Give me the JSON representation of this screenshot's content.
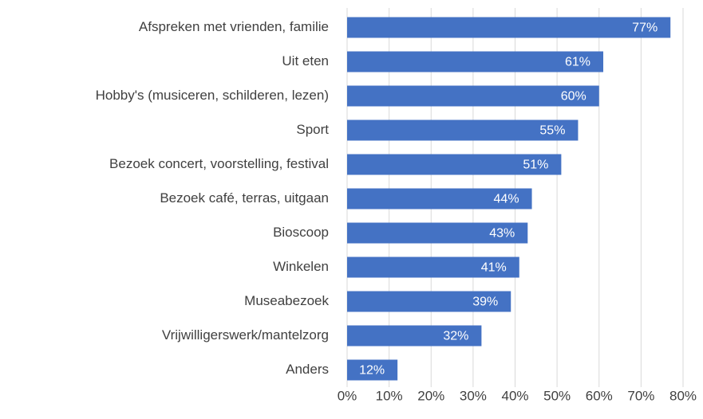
{
  "chart_data": {
    "type": "hbar",
    "categories": [
      "Afspreken met vrienden, familie",
      "Uit eten",
      "Hobby's (musiceren, schilderen, lezen)",
      "Sport",
      "Bezoek concert, voorstelling, festival",
      "Bezoek café, terras, uitgaan",
      "Bioscoop",
      "Winkelen",
      "Museabezoek",
      "Vrijwilligerswerk/mantelzorg",
      "Anders"
    ],
    "values": [
      77,
      61,
      60,
      55,
      51,
      44,
      43,
      41,
      39,
      32,
      12
    ],
    "value_labels": [
      "77%",
      "61%",
      "60%",
      "55%",
      "51%",
      "44%",
      "43%",
      "41%",
      "39%",
      "32%",
      "12%"
    ],
    "color": "#4472c4",
    "xlim": [
      0,
      80
    ],
    "xticks": [
      {
        "value": 0,
        "label": "0%"
      },
      {
        "value": 10,
        "label": "10%"
      },
      {
        "value": 20,
        "label": "20%"
      },
      {
        "value": 30,
        "label": "30%"
      },
      {
        "value": 40,
        "label": "40%"
      },
      {
        "value": 50,
        "label": "50%"
      },
      {
        "value": 60,
        "label": "60%"
      },
      {
        "value": 70,
        "label": "70%"
      },
      {
        "value": 80,
        "label": "80%"
      }
    ],
    "grid": true
  }
}
